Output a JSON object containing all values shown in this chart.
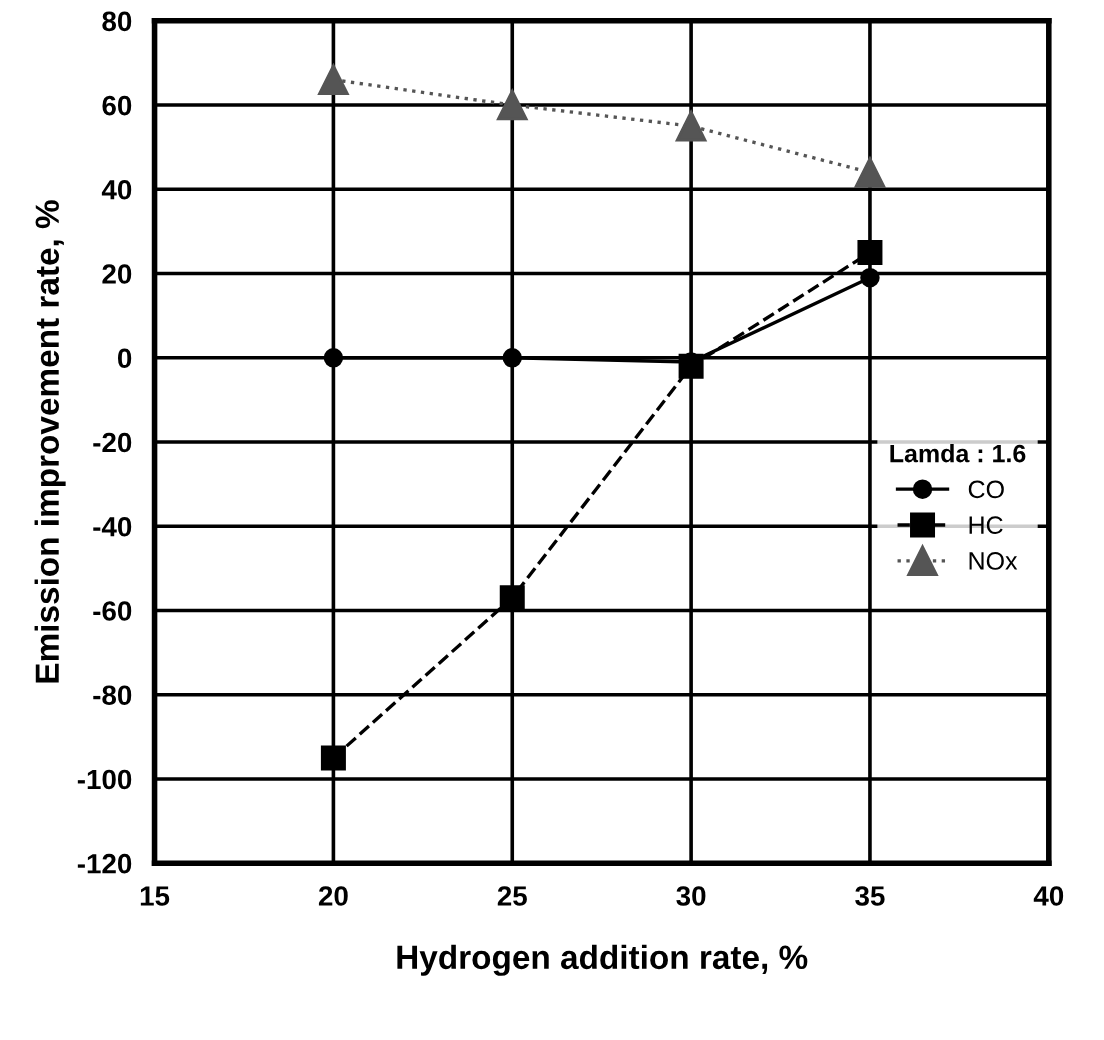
{
  "chart_data": {
    "type": "line",
    "xlabel": "Hydrogen addition rate, %",
    "ylabel": "Emission improvement rate, %",
    "legend_title": "Lamda : 1.6",
    "x": [
      20,
      25,
      30,
      35
    ],
    "series": [
      {
        "name": "CO",
        "color": "#000000",
        "marker": "circle",
        "line_style": "solid",
        "values": [
          0,
          0,
          -1,
          19
        ]
      },
      {
        "name": "HC",
        "color": "#000000",
        "marker": "square",
        "line_style": "dashed",
        "values": [
          -95,
          -57,
          -2,
          25
        ]
      },
      {
        "name": "NOx",
        "color": "#555555",
        "marker": "triangle",
        "line_style": "dotted",
        "values": [
          66,
          60,
          55,
          44
        ]
      }
    ],
    "xlim": [
      15,
      40
    ],
    "xticks": [
      15,
      20,
      25,
      30,
      35,
      40
    ],
    "ylim": [
      -120,
      80
    ],
    "yticks": [
      -120,
      -100,
      -80,
      -60,
      -40,
      -20,
      0,
      20,
      40,
      60,
      80
    ],
    "grid": true,
    "legend": "right"
  }
}
